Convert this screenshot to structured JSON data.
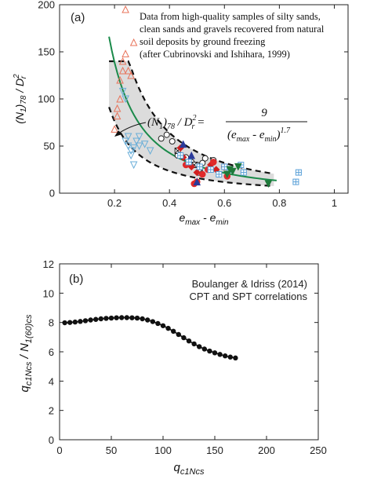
{
  "chart_data": [
    {
      "type": "scatter",
      "panel_label": "(a)",
      "ylabel": {
        "main": "(N",
        "sub1": "1",
        "mid": ")",
        "sub2": "78",
        "slash": " / D",
        "sup": "2",
        "sub3": "r"
      },
      "xlabel": {
        "main": "e",
        "sub1": "max",
        "mid": " - e",
        "sub2": "min"
      },
      "xlim": [
        0,
        1.05
      ],
      "ylim": [
        0,
        200
      ],
      "xticks": [
        {
          "v": 0.2,
          "t": "0.2"
        },
        {
          "v": 0.4,
          "t": "0.4"
        },
        {
          "v": 0.6,
          "t": "0.6"
        },
        {
          "v": 0.8,
          "t": "0.8"
        },
        {
          "v": 1.0,
          "t": "1"
        }
      ],
      "yticks": [
        {
          "v": 0,
          "t": "0"
        },
        {
          "v": 50,
          "t": "50"
        },
        {
          "v": 100,
          "t": "100"
        },
        {
          "v": 150,
          "t": "150"
        },
        {
          "v": 200,
          "t": "200"
        }
      ],
      "note_lines": [
        "Data from high-quality samples of silty sands,",
        "clean sands and gravels recovered from natural",
        "soil deposits by ground freezing",
        "(after Cubrinovski and Ishihara, 1999)"
      ],
      "equation": {
        "lhs_main": "(N",
        "lhs_sub1": "1",
        "lhs_mid": ")",
        "lhs_sub2": "78",
        "lhs_slash": " / D",
        "lhs_sup": "2",
        "lhs_sub3": "r",
        "eq": " =",
        "numerator": "9",
        "denom_a": "(e",
        "denom_sub1": "max",
        "denom_b": " - e",
        "denom_sub2": "min",
        "denom_c": ")",
        "denom_sup": "1.7"
      },
      "trend": {
        "coef": 9,
        "exp": 1.7,
        "x_range": [
          0.18,
          0.79
        ],
        "color": "#1a8a4a"
      },
      "band": {
        "lower": 0.55,
        "upper": 1.5,
        "x_range": [
          0.18,
          0.78
        ],
        "color": "#dcdcdc"
      },
      "series": [
        {
          "marker": "tri-up-open",
          "color": "#e8735a",
          "points": [
            [
              0.2,
              68
            ],
            [
              0.21,
              90
            ],
            [
              0.21,
              82
            ],
            [
              0.22,
              120
            ],
            [
              0.22,
              100
            ],
            [
              0.23,
              140
            ],
            [
              0.23,
              130
            ],
            [
              0.24,
              195
            ],
            [
              0.24,
              148
            ],
            [
              0.25,
              130
            ],
            [
              0.26,
              125
            ],
            [
              0.27,
              160
            ]
          ]
        },
        {
          "marker": "tri-down-open",
          "color": "#6aaed8",
          "points": [
            [
              0.23,
              108
            ],
            [
              0.24,
              100
            ],
            [
              0.24,
              55
            ],
            [
              0.25,
              60
            ],
            [
              0.25,
              50
            ],
            [
              0.26,
              45
            ],
            [
              0.26,
              40
            ],
            [
              0.27,
              48
            ],
            [
              0.27,
              30
            ],
            [
              0.28,
              55
            ],
            [
              0.29,
              50
            ],
            [
              0.29,
              60
            ],
            [
              0.31,
              52
            ],
            [
              0.33,
              45
            ]
          ]
        },
        {
          "marker": "circle-open",
          "color": "#222222",
          "points": [
            [
              0.37,
              58
            ],
            [
              0.39,
              62
            ],
            [
              0.41,
              55
            ],
            [
              0.43,
              40
            ],
            [
              0.46,
              38
            ],
            [
              0.48,
              33
            ],
            [
              0.5,
              30
            ],
            [
              0.52,
              32
            ],
            [
              0.53,
              37
            ],
            [
              0.56,
              35
            ]
          ]
        },
        {
          "marker": "square-x-open",
          "color": "#222222",
          "points": [
            [
              0.43,
              45
            ],
            [
              0.49,
              30
            ],
            [
              0.51,
              22
            ]
          ]
        },
        {
          "marker": "diamond-filled",
          "color": "#d22020",
          "points": [
            [
              0.44,
              48
            ],
            [
              0.45,
              38
            ],
            [
              0.48,
              28
            ],
            [
              0.5,
              22
            ],
            [
              0.55,
              30
            ],
            [
              0.57,
              25
            ]
          ]
        },
        {
          "marker": "circle-filled",
          "color": "#e02a2a",
          "points": [
            [
              0.46,
              30
            ],
            [
              0.49,
              10
            ],
            [
              0.5,
              12
            ],
            [
              0.52,
              20
            ],
            [
              0.54,
              25
            ],
            [
              0.56,
              33
            ],
            [
              0.6,
              28
            ],
            [
              0.61,
              18
            ]
          ]
        },
        {
          "marker": "tri-up-filled",
          "color": "#2a3a9a",
          "points": [
            [
              0.45,
              52
            ],
            [
              0.48,
              40
            ],
            [
              0.5,
              12
            ]
          ]
        },
        {
          "marker": "square-plus-open",
          "color": "#5aa0d8",
          "points": [
            [
              0.44,
              40
            ],
            [
              0.47,
              33
            ],
            [
              0.51,
              28
            ],
            [
              0.55,
              25
            ],
            [
              0.58,
              20
            ],
            [
              0.6,
              28
            ],
            [
              0.62,
              25
            ],
            [
              0.66,
              30
            ],
            [
              0.67,
              22
            ],
            [
              0.86,
              12
            ],
            [
              0.87,
              22
            ]
          ]
        },
        {
          "marker": "tri-down-filled",
          "color": "#1f7a3a",
          "points": [
            [
              0.61,
              20
            ],
            [
              0.62,
              25
            ],
            [
              0.63,
              23
            ],
            [
              0.65,
              28
            ],
            [
              0.76,
              10
            ]
          ]
        }
      ]
    },
    {
      "type": "line",
      "panel_label": "(b)",
      "legend_lines": [
        "Boulanger & Idriss (2014)",
        "CPT and SPT correlations"
      ],
      "ylabel": {
        "a": "q",
        "a_sub": "c1Ncs",
        "b": " / N",
        "b_sub": "1(60)cs"
      },
      "xlabel": {
        "a": "q",
        "a_sub": "c1Ncs"
      },
      "xlim": [
        0,
        250
      ],
      "ylim": [
        0,
        12
      ],
      "xticks": [
        0,
        50,
        100,
        150,
        200,
        250
      ],
      "yticks": [
        0,
        2,
        4,
        6,
        8,
        10,
        12
      ],
      "x": [
        5,
        10,
        15,
        20,
        25,
        30,
        35,
        40,
        45,
        50,
        55,
        60,
        65,
        70,
        75,
        80,
        85,
        90,
        95,
        100,
        105,
        110,
        115,
        120,
        125,
        130,
        135,
        140,
        145,
        150,
        155,
        160,
        165,
        170
      ],
      "y": [
        7.98,
        8.0,
        8.03,
        8.07,
        8.12,
        8.17,
        8.21,
        8.25,
        8.28,
        8.3,
        8.32,
        8.33,
        8.33,
        8.32,
        8.3,
        8.25,
        8.17,
        8.06,
        7.93,
        7.78,
        7.6,
        7.4,
        7.18,
        6.96,
        6.74,
        6.54,
        6.35,
        6.19,
        6.05,
        5.93,
        5.82,
        5.72,
        5.64,
        5.58
      ]
    }
  ]
}
